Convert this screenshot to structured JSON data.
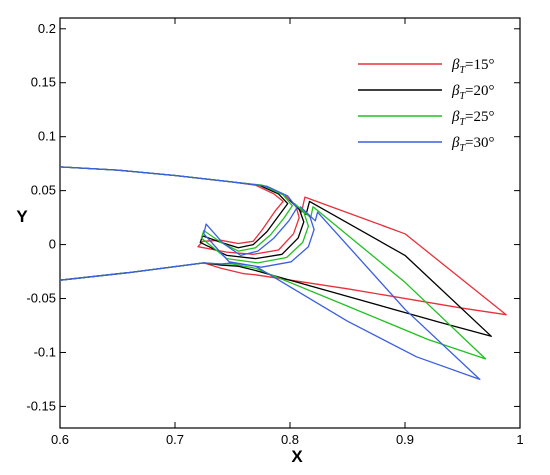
{
  "chart_data": {
    "type": "line",
    "title": "",
    "xlabel": "X",
    "ylabel": "Y",
    "xlim": [
      0.6,
      1.0
    ],
    "ylim": [
      -0.17,
      0.21
    ],
    "x_ticks": [
      "0.6",
      "0.7",
      "0.8",
      "0.9",
      "1"
    ],
    "y_ticks": [
      "-0.15",
      "-0.1",
      "-0.05",
      "0",
      "0.05",
      "0.1",
      "0.15",
      "0.2"
    ],
    "grid": false,
    "legend_position": "top-right",
    "series": [
      {
        "name": "βT=15°",
        "legend_beta": "β",
        "legend_sub": "T",
        "legend_rest": "=15°",
        "color": "#e8303a",
        "points": [
          [
            0.6,
            0.072
          ],
          [
            0.65,
            0.069
          ],
          [
            0.7,
            0.064
          ],
          [
            0.75,
            0.058
          ],
          [
            0.77,
            0.055
          ],
          [
            0.786,
            0.047
          ],
          [
            0.794,
            0.04
          ],
          [
            0.787,
            0.031
          ],
          [
            0.776,
            0.014
          ],
          [
            0.768,
            0.003
          ],
          [
            0.755,
            0.001
          ],
          [
            0.74,
            0.004
          ],
          [
            0.724,
            0.003
          ],
          [
            0.72,
            -0.002
          ],
          [
            0.745,
            -0.007
          ],
          [
            0.768,
            -0.009
          ],
          [
            0.79,
            -0.005
          ],
          [
            0.803,
            0.01
          ],
          [
            0.808,
            0.025
          ],
          [
            0.805,
            0.036
          ],
          [
            0.796,
            0.045
          ],
          [
            0.81,
            0.03
          ],
          [
            0.813,
            0.044
          ],
          [
            0.9,
            0.01
          ],
          [
            0.988,
            -0.065
          ],
          [
            0.95,
            -0.059
          ],
          [
            0.85,
            -0.041
          ],
          [
            0.77,
            -0.028
          ],
          [
            0.76,
            -0.027
          ],
          [
            0.74,
            -0.022
          ],
          [
            0.725,
            -0.017
          ],
          [
            0.66,
            -0.026
          ],
          [
            0.6,
            -0.033
          ]
        ]
      },
      {
        "name": "βT=20°",
        "legend_beta": "β",
        "legend_sub": "T",
        "legend_rest": "=20°",
        "color": "#000000",
        "points": [
          [
            0.6,
            0.072
          ],
          [
            0.65,
            0.069
          ],
          [
            0.7,
            0.064
          ],
          [
            0.75,
            0.058
          ],
          [
            0.773,
            0.055
          ],
          [
            0.79,
            0.047
          ],
          [
            0.798,
            0.038
          ],
          [
            0.791,
            0.028
          ],
          [
            0.78,
            0.012
          ],
          [
            0.768,
            0.0
          ],
          [
            0.755,
            -0.003
          ],
          [
            0.74,
            0.002
          ],
          [
            0.724,
            0.008
          ],
          [
            0.722,
            0.002
          ],
          [
            0.745,
            -0.01
          ],
          [
            0.77,
            -0.013
          ],
          [
            0.793,
            -0.009
          ],
          [
            0.807,
            0.006
          ],
          [
            0.812,
            0.021
          ],
          [
            0.808,
            0.033
          ],
          [
            0.8,
            0.041
          ],
          [
            0.814,
            0.028
          ],
          [
            0.817,
            0.04
          ],
          [
            0.9,
            -0.01
          ],
          [
            0.975,
            -0.085
          ],
          [
            0.93,
            -0.072
          ],
          [
            0.85,
            -0.048
          ],
          [
            0.77,
            -0.024
          ],
          [
            0.755,
            -0.02
          ],
          [
            0.74,
            -0.019
          ],
          [
            0.725,
            -0.017
          ],
          [
            0.66,
            -0.026
          ],
          [
            0.6,
            -0.033
          ]
        ]
      },
      {
        "name": "βT=25°",
        "legend_beta": "β",
        "legend_sub": "T",
        "legend_rest": "=25°",
        "color": "#22c022",
        "points": [
          [
            0.6,
            0.072
          ],
          [
            0.65,
            0.069
          ],
          [
            0.7,
            0.064
          ],
          [
            0.75,
            0.058
          ],
          [
            0.776,
            0.055
          ],
          [
            0.794,
            0.046
          ],
          [
            0.802,
            0.036
          ],
          [
            0.795,
            0.025
          ],
          [
            0.783,
            0.009
          ],
          [
            0.77,
            -0.003
          ],
          [
            0.755,
            -0.006
          ],
          [
            0.74,
            0.002
          ],
          [
            0.725,
            0.013
          ],
          [
            0.723,
            0.006
          ],
          [
            0.745,
            -0.013
          ],
          [
            0.772,
            -0.017
          ],
          [
            0.797,
            -0.012
          ],
          [
            0.811,
            0.002
          ],
          [
            0.816,
            0.017
          ],
          [
            0.812,
            0.03
          ],
          [
            0.804,
            0.038
          ],
          [
            0.818,
            0.025
          ],
          [
            0.82,
            0.035
          ],
          [
            0.9,
            -0.035
          ],
          [
            0.97,
            -0.106
          ],
          [
            0.92,
            -0.088
          ],
          [
            0.85,
            -0.057
          ],
          [
            0.77,
            -0.022
          ],
          [
            0.75,
            -0.018
          ],
          [
            0.74,
            -0.018
          ],
          [
            0.725,
            -0.017
          ],
          [
            0.66,
            -0.026
          ],
          [
            0.6,
            -0.033
          ]
        ]
      },
      {
        "name": "βT=30°",
        "legend_beta": "β",
        "legend_sub": "T",
        "legend_rest": "=30°",
        "color": "#3a5fe0",
        "points": [
          [
            0.6,
            0.072
          ],
          [
            0.65,
            0.069
          ],
          [
            0.7,
            0.064
          ],
          [
            0.75,
            0.058
          ],
          [
            0.78,
            0.054
          ],
          [
            0.798,
            0.045
          ],
          [
            0.806,
            0.034
          ],
          [
            0.799,
            0.022
          ],
          [
            0.786,
            0.006
          ],
          [
            0.772,
            -0.006
          ],
          [
            0.757,
            -0.01
          ],
          [
            0.742,
            0.001
          ],
          [
            0.727,
            0.019
          ],
          [
            0.725,
            0.01
          ],
          [
            0.747,
            -0.016
          ],
          [
            0.775,
            -0.021
          ],
          [
            0.801,
            -0.016
          ],
          [
            0.816,
            -0.002
          ],
          [
            0.821,
            0.014
          ],
          [
            0.817,
            0.027
          ],
          [
            0.809,
            0.035
          ],
          [
            0.822,
            0.022
          ],
          [
            0.824,
            0.03
          ],
          [
            0.9,
            -0.06
          ],
          [
            0.965,
            -0.125
          ],
          [
            0.91,
            -0.104
          ],
          [
            0.85,
            -0.071
          ],
          [
            0.77,
            -0.02
          ],
          [
            0.75,
            -0.017
          ],
          [
            0.74,
            -0.018
          ],
          [
            0.725,
            -0.017
          ],
          [
            0.66,
            -0.026
          ],
          [
            0.6,
            -0.033
          ]
        ]
      }
    ]
  }
}
